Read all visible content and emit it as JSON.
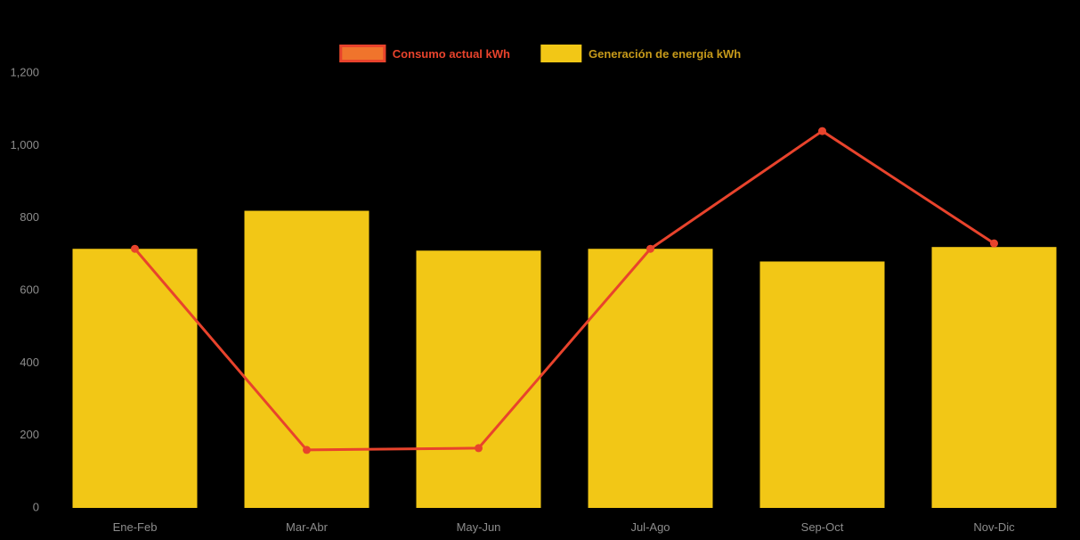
{
  "colors": {
    "background": "#000000",
    "bar": "#F2C716",
    "line": "#E8432C",
    "legend_line_fill": "#F0742C",
    "axis_text": "#8C8C8C"
  },
  "chart_data": {
    "type": "bar",
    "title": "",
    "xlabel": "",
    "ylabel": "",
    "categories": [
      "Ene-Feb",
      "Mar-Abr",
      "May-Jun",
      "Jul-Ago",
      "Sep-Oct",
      "Nov-Dic"
    ],
    "series": [
      {
        "name": "Consumo actual kWh",
        "type": "line",
        "values": [
          715,
          160,
          165,
          715,
          1040,
          730
        ]
      },
      {
        "name": "Generación de energía kWh",
        "type": "bar",
        "values": [
          715,
          820,
          710,
          715,
          680,
          720
        ]
      }
    ],
    "ylim": [
      0,
      1200
    ],
    "y_ticks": [
      0,
      200,
      400,
      600,
      800,
      1000,
      1200
    ],
    "y_tick_labels": [
      "0",
      "200",
      "400",
      "600",
      "800",
      "1,000",
      "1,200"
    ],
    "grid": false,
    "legend_position": "top"
  }
}
